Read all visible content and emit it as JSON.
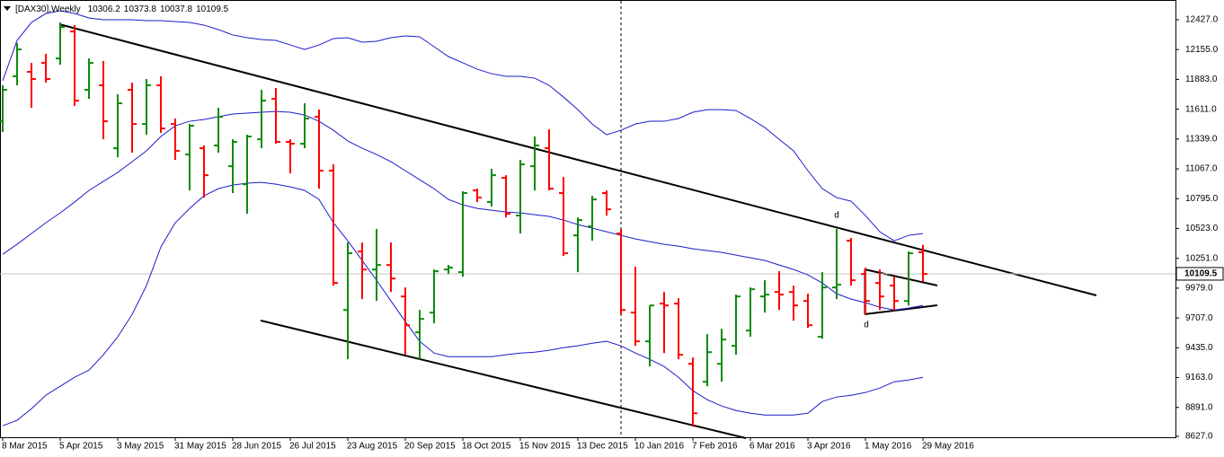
{
  "chart_data": {
    "type": "ohlc",
    "title": "[DAX30],Weekly",
    "categories": [
      "8 Mar 2015",
      null,
      null,
      null,
      "5 Apr 2015",
      null,
      null,
      null,
      "3 May 2015",
      null,
      null,
      null,
      "31 May 2015",
      null,
      null,
      null,
      "28 Jun 2015",
      null,
      null,
      null,
      "26 Jul 2015",
      null,
      null,
      null,
      "23 Aug 2015",
      null,
      null,
      null,
      "20 Sep 2015",
      null,
      null,
      null,
      "18 Oct 2015",
      null,
      null,
      null,
      "15 Nov 2015",
      null,
      null,
      null,
      "13 Dec 2015",
      null,
      null,
      null,
      "10 Jan 2016",
      null,
      null,
      null,
      "7 Feb 2016",
      null,
      null,
      null,
      "6 Mar 2016",
      null,
      null,
      null,
      "3 Apr 2016",
      null,
      null,
      null,
      "1 May 2016",
      null,
      null,
      null,
      "29 May 2016"
    ],
    "open": [
      11501,
      11911,
      11952,
      12033,
      12074,
      12320,
      11788,
      11829,
      11255,
      11788,
      11476,
      11829,
      11476,
      11198,
      11255,
      11280,
      11091,
      10927,
      11337,
      11706,
      11313,
      11296,
      11542,
      11050,
      9780,
      10313,
      10149,
      10190,
      9903,
      9576,
      9756,
      10149,
      10125,
      10870,
      10764,
      10985,
      10641,
      11091,
      11255,
      10846,
      10460,
      10542,
      10846,
      10477,
      9756,
      9494,
      9838,
      9838,
      9289,
      9125,
      9289,
      9453,
      9592,
      9903,
      9944,
      9944,
      9862,
      9535,
      9985,
      10411,
      10108,
      10026,
      10002,
      9862,
      10306.2
    ],
    "high": [
      11829,
      12214,
      12033,
      12115,
      12402,
      12378,
      12074,
      12050,
      11747,
      11853,
      11886,
      11911,
      11526,
      11476,
      11280,
      11624,
      11337,
      11378,
      11788,
      11804,
      11337,
      11665,
      11608,
      11108,
      10395,
      10395,
      10518,
      10395,
      9985,
      9780,
      10149,
      10190,
      10862,
      10886,
      11067,
      11009,
      11149,
      11362,
      11427,
      10993,
      10624,
      10821,
      10870,
      10518,
      10174,
      9821,
      9944,
      9887,
      9346,
      9559,
      9608,
      9920,
      9985,
      10051,
      10133,
      10002,
      9928,
      10125,
      10518,
      10436,
      10166,
      10149,
      10084,
      10313,
      10373.8
    ],
    "low": [
      11403,
      11829,
      11624,
      11853,
      12017,
      11640,
      11706,
      11337,
      11173,
      11214,
      11378,
      11394,
      11149,
      10870,
      10805,
      11214,
      10846,
      10657,
      11255,
      11296,
      11026,
      11255,
      10886,
      10002,
      9330,
      9879,
      9862,
      9944,
      9371,
      9330,
      9658,
      10108,
      10084,
      10764,
      10723,
      10624,
      10477,
      10870,
      10870,
      10272,
      10125,
      10411,
      10641,
      9739,
      9453,
      9264,
      9387,
      9330,
      8715,
      9084,
      9125,
      9371,
      9535,
      9756,
      9780,
      9682,
      9617,
      9518,
      9879,
      10002,
      9739,
      9780,
      9772,
      9821,
      10037.8
    ],
    "close": [
      11788,
      12156,
      11886,
      11886,
      12361,
      11689,
      12033,
      11501,
      11665,
      11476,
      11829,
      11435,
      11231,
      11460,
      11009,
      11542,
      11313,
      11362,
      11689,
      11313,
      11296,
      11526,
      11050,
      10026,
      10297,
      10149,
      10190,
      10067,
      9641,
      9698,
      10133,
      10166,
      10846,
      10805,
      11009,
      10657,
      11108,
      11280,
      10886,
      10297,
      10600,
      10788,
      10698,
      9780,
      9494,
      9821,
      9821,
      9371,
      8838,
      9395,
      9510,
      9903,
      9969,
      9920,
      9920,
      9821,
      9641,
      9985,
      10010,
      10051,
      9862,
      9903,
      9862,
      10297,
      10109.5
    ],
    "up_color": "#0b8a0b",
    "down_color": "#ff0000",
    "bands": {
      "color": "#1c1ccc",
      "upper": [
        11870,
        12238,
        12402,
        12484,
        12509,
        12484,
        12443,
        12427,
        12427,
        12427,
        12419,
        12419,
        12410,
        12402,
        12378,
        12337,
        12288,
        12263,
        12247,
        12238,
        12197,
        12156,
        12197,
        12255,
        12263,
        12222,
        12230,
        12263,
        12279,
        12271,
        12181,
        12091,
        12034,
        11976,
        11935,
        11911,
        11911,
        11894,
        11829,
        11722,
        11607,
        11476,
        11378,
        11419,
        11476,
        11501,
        11501,
        11526,
        11583,
        11607,
        11607,
        11599,
        11526,
        11444,
        11337,
        11231,
        11050,
        10886,
        10805,
        10772,
        10641,
        10493,
        10411,
        10460,
        10477
      ],
      "middle": [
        10288,
        10379,
        10477,
        10575,
        10665,
        10764,
        10870,
        10952,
        11034,
        11132,
        11231,
        11362,
        11460,
        11501,
        11517,
        11542,
        11567,
        11575,
        11583,
        11591,
        11583,
        11558,
        11501,
        11419,
        11321,
        11255,
        11198,
        11132,
        11050,
        10968,
        10886,
        10788,
        10739,
        10706,
        10690,
        10673,
        10665,
        10649,
        10633,
        10600,
        10559,
        10526,
        10493,
        10460,
        10428,
        10403,
        10379,
        10362,
        10338,
        10321,
        10305,
        10280,
        10256,
        10231,
        10190,
        10149,
        10100,
        10026,
        9928,
        9879,
        9846,
        9805,
        9780,
        9797,
        9821
      ],
      "lower": [
        8724,
        8773,
        8879,
        9002,
        9084,
        9166,
        9231,
        9371,
        9535,
        9739,
        10002,
        10354,
        10575,
        10706,
        10821,
        10886,
        10919,
        10936,
        10944,
        10927,
        10903,
        10870,
        10788,
        10575,
        10411,
        10231,
        10051,
        9862,
        9674,
        9494,
        9387,
        9354,
        9354,
        9354,
        9354,
        9371,
        9387,
        9395,
        9412,
        9436,
        9453,
        9477,
        9494,
        9453,
        9387,
        9330,
        9264,
        9166,
        9043,
        8961,
        8904,
        8863,
        8838,
        8822,
        8822,
        8822,
        8838,
        8945,
        8986,
        9002,
        9027,
        9068,
        9125,
        9141,
        9166
      ]
    },
    "annotations": [
      "d",
      "d"
    ],
    "ylim": [
      8619,
      12566
    ],
    "yticks": [
      {
        "value": 12427,
        "label": "12427.0"
      },
      {
        "value": 12155,
        "label": "12155.0"
      },
      {
        "value": 11883,
        "label": "11883.0"
      },
      {
        "value": 11611,
        "label": "11611.0"
      },
      {
        "value": 11339,
        "label": "11339.0"
      },
      {
        "value": 11067,
        "label": "11067.0"
      },
      {
        "value": 10795,
        "label": "10795.0"
      },
      {
        "value": 10523,
        "label": "10523.0"
      },
      {
        "value": 10251,
        "label": "10251.0"
      },
      {
        "value": 9979,
        "label": "9979.0"
      },
      {
        "value": 9707,
        "label": "9707.0"
      },
      {
        "value": 9435,
        "label": "9435.0"
      },
      {
        "value": 9163,
        "label": "9163.0"
      },
      {
        "value": 8891,
        "label": "8891.0"
      },
      {
        "value": 8627,
        "label": "8627.0"
      }
    ],
    "grid": false
  }
}
